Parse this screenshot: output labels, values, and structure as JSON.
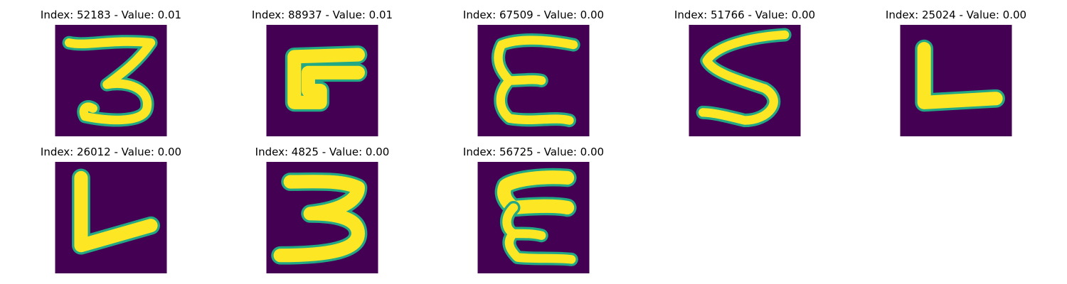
{
  "panels": [
    {
      "title": "Index: 52183 - Value: 0.01",
      "glyph": "3"
    },
    {
      "title": "Index: 88937 - Value: 0.01",
      "glyph": "F"
    },
    {
      "title": "Index: 67509 - Value: 0.00",
      "glyph": "E"
    },
    {
      "title": "Index: 51766 - Value: 0.00",
      "glyph": "S"
    },
    {
      "title": "Index: 25024 - Value: 0.00",
      "glyph": "L"
    },
    {
      "title": "Index: 26012 - Value: 0.00",
      "glyph": "V"
    },
    {
      "title": "Index: 4825 - Value: 0.00",
      "glyph": "3"
    },
    {
      "title": "Index: 56725 - Value: 0.00",
      "glyph": "E"
    }
  ],
  "colors": {
    "background": "#440154",
    "stroke_core": "#fde725",
    "stroke_edge": "#22a884"
  }
}
